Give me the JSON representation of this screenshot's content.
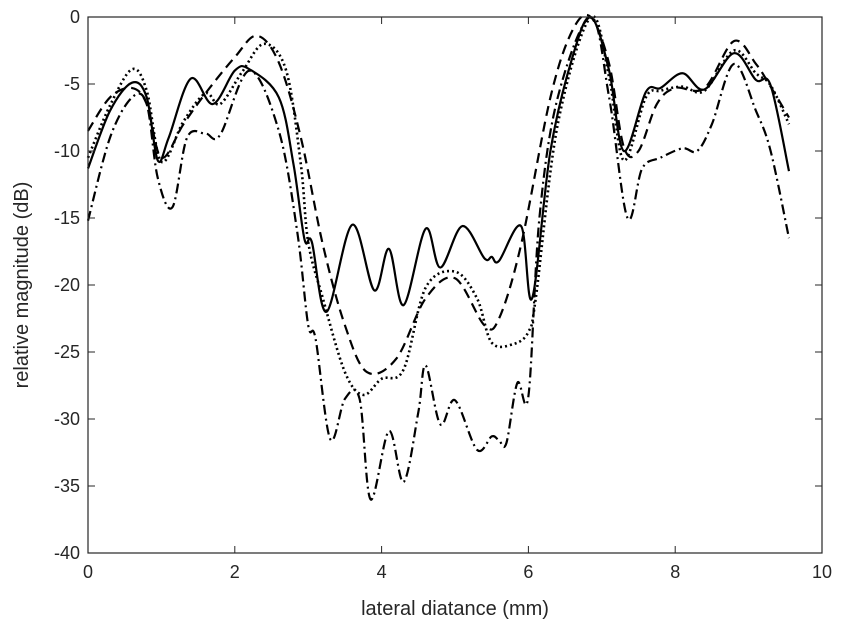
{
  "chart_data": {
    "type": "line",
    "title": "",
    "xlabel": "lateral diatance (mm)",
    "ylabel": "relative magnitude (dB)",
    "xlim": [
      0,
      10
    ],
    "ylim": [
      -40,
      0
    ],
    "xticks": [
      0,
      2,
      4,
      6,
      8,
      10
    ],
    "yticks": [
      0,
      -5,
      -10,
      -15,
      -20,
      -25,
      -30,
      -35,
      -40
    ],
    "grid": false,
    "legend": "none",
    "series": [
      {
        "style": "solid",
        "color": "#000000",
        "points": [
          [
            0,
            -11.3
          ],
          [
            0.3,
            -7
          ],
          [
            0.6,
            -4.9
          ],
          [
            0.8,
            -6
          ],
          [
            0.95,
            -10.7
          ],
          [
            1.1,
            -9
          ],
          [
            1.4,
            -4.6
          ],
          [
            1.7,
            -6.5
          ],
          [
            2.0,
            -4
          ],
          [
            2.2,
            -3.9
          ],
          [
            2.6,
            -6
          ],
          [
            2.8,
            -11
          ],
          [
            2.95,
            -16.6
          ],
          [
            3.05,
            -16.8
          ],
          [
            3.25,
            -22
          ],
          [
            3.6,
            -15.5
          ],
          [
            3.9,
            -20.4
          ],
          [
            4.1,
            -17.3
          ],
          [
            4.3,
            -21.5
          ],
          [
            4.6,
            -15.8
          ],
          [
            4.8,
            -18.7
          ],
          [
            5.1,
            -15.6
          ],
          [
            5.4,
            -18
          ],
          [
            5.5,
            -17.9
          ],
          [
            5.6,
            -18.2
          ],
          [
            5.9,
            -15.6
          ],
          [
            6.05,
            -21
          ],
          [
            6.3,
            -10
          ],
          [
            6.6,
            -3
          ],
          [
            6.85,
            0
          ],
          [
            7.1,
            -4
          ],
          [
            7.3,
            -10
          ],
          [
            7.6,
            -5.6
          ],
          [
            7.8,
            -5.3
          ],
          [
            8.1,
            -4.2
          ],
          [
            8.4,
            -5.4
          ],
          [
            8.8,
            -2.7
          ],
          [
            9.1,
            -4.7
          ],
          [
            9.3,
            -5.1
          ],
          [
            9.55,
            -11.5
          ]
        ]
      },
      {
        "style": "dashed",
        "color": "#000000",
        "points": [
          [
            0,
            -8.5
          ],
          [
            0.3,
            -6
          ],
          [
            0.6,
            -5.3
          ],
          [
            0.8,
            -6.5
          ],
          [
            1.0,
            -10.5
          ],
          [
            1.3,
            -8
          ],
          [
            1.6,
            -5.7
          ],
          [
            2.0,
            -3
          ],
          [
            2.3,
            -1.4
          ],
          [
            2.6,
            -3.4
          ],
          [
            2.9,
            -9
          ],
          [
            3.2,
            -17
          ],
          [
            3.5,
            -23
          ],
          [
            3.8,
            -26.5
          ],
          [
            4.2,
            -25.5
          ],
          [
            4.6,
            -21
          ],
          [
            5.0,
            -19.5
          ],
          [
            5.4,
            -23
          ],
          [
            5.6,
            -22.5
          ],
          [
            5.9,
            -17
          ],
          [
            6.3,
            -6
          ],
          [
            6.6,
            -1
          ],
          [
            6.85,
            0
          ],
          [
            7.1,
            -3.5
          ],
          [
            7.3,
            -9.7
          ],
          [
            7.5,
            -10
          ],
          [
            7.75,
            -6.5
          ],
          [
            8.0,
            -5.3
          ],
          [
            8.4,
            -5.3
          ],
          [
            8.8,
            -1.8
          ],
          [
            9.1,
            -3.5
          ],
          [
            9.3,
            -5.2
          ],
          [
            9.55,
            -7.5
          ]
        ]
      },
      {
        "style": "dotted",
        "color": "#000000",
        "points": [
          [
            0,
            -10.5
          ],
          [
            0.3,
            -6.6
          ],
          [
            0.6,
            -3.9
          ],
          [
            0.8,
            -5.5
          ],
          [
            1.0,
            -10.8
          ],
          [
            1.3,
            -7.8
          ],
          [
            1.6,
            -5.7
          ],
          [
            1.8,
            -6.5
          ],
          [
            2.1,
            -4.1
          ],
          [
            2.4,
            -2
          ],
          [
            2.7,
            -4
          ],
          [
            2.9,
            -11
          ],
          [
            3.0,
            -16.8
          ],
          [
            3.2,
            -21
          ],
          [
            3.5,
            -26.5
          ],
          [
            3.75,
            -28.2
          ],
          [
            4.0,
            -27
          ],
          [
            4.3,
            -26.3
          ],
          [
            4.6,
            -20.2
          ],
          [
            5.0,
            -19
          ],
          [
            5.3,
            -21
          ],
          [
            5.5,
            -24.3
          ],
          [
            5.8,
            -24.4
          ],
          [
            6.0,
            -23.5
          ],
          [
            6.1,
            -21
          ],
          [
            6.4,
            -8
          ],
          [
            6.85,
            0
          ],
          [
            7.1,
            -4.5
          ],
          [
            7.3,
            -10.7
          ],
          [
            7.6,
            -6
          ],
          [
            7.8,
            -5.5
          ],
          [
            8.1,
            -5.2
          ],
          [
            8.4,
            -5.5
          ],
          [
            8.8,
            -2.5
          ],
          [
            9.1,
            -4.2
          ],
          [
            9.3,
            -5.1
          ],
          [
            9.55,
            -8
          ]
        ]
      },
      {
        "style": "dash-dot",
        "color": "#000000",
        "points": [
          [
            0,
            -15.2
          ],
          [
            0.3,
            -9
          ],
          [
            0.6,
            -6
          ],
          [
            0.8,
            -6.5
          ],
          [
            0.95,
            -12
          ],
          [
            1.15,
            -14.2
          ],
          [
            1.35,
            -9
          ],
          [
            1.6,
            -8.7
          ],
          [
            1.8,
            -8.8
          ],
          [
            2.2,
            -4
          ],
          [
            2.6,
            -8.5
          ],
          [
            2.85,
            -16
          ],
          [
            3.0,
            -23
          ],
          [
            3.1,
            -24
          ],
          [
            3.3,
            -31.5
          ],
          [
            3.5,
            -28.5
          ],
          [
            3.7,
            -28.5
          ],
          [
            3.85,
            -36
          ],
          [
            4.1,
            -30.9
          ],
          [
            4.3,
            -34.7
          ],
          [
            4.5,
            -29.5
          ],
          [
            4.6,
            -26
          ],
          [
            4.8,
            -30.4
          ],
          [
            5.0,
            -28.6
          ],
          [
            5.3,
            -32.3
          ],
          [
            5.5,
            -31.3
          ],
          [
            5.6,
            -31.6
          ],
          [
            5.7,
            -31.8
          ],
          [
            5.85,
            -27.3
          ],
          [
            6.0,
            -28.3
          ],
          [
            6.15,
            -15
          ],
          [
            6.4,
            -6
          ],
          [
            6.85,
            0
          ],
          [
            7.1,
            -6
          ],
          [
            7.35,
            -15
          ],
          [
            7.55,
            -11.3
          ],
          [
            7.8,
            -10.5
          ],
          [
            8.1,
            -9.8
          ],
          [
            8.3,
            -10
          ],
          [
            8.5,
            -8
          ],
          [
            8.8,
            -3.5
          ],
          [
            9.1,
            -7
          ],
          [
            9.3,
            -10
          ],
          [
            9.55,
            -16.5
          ]
        ]
      }
    ]
  }
}
